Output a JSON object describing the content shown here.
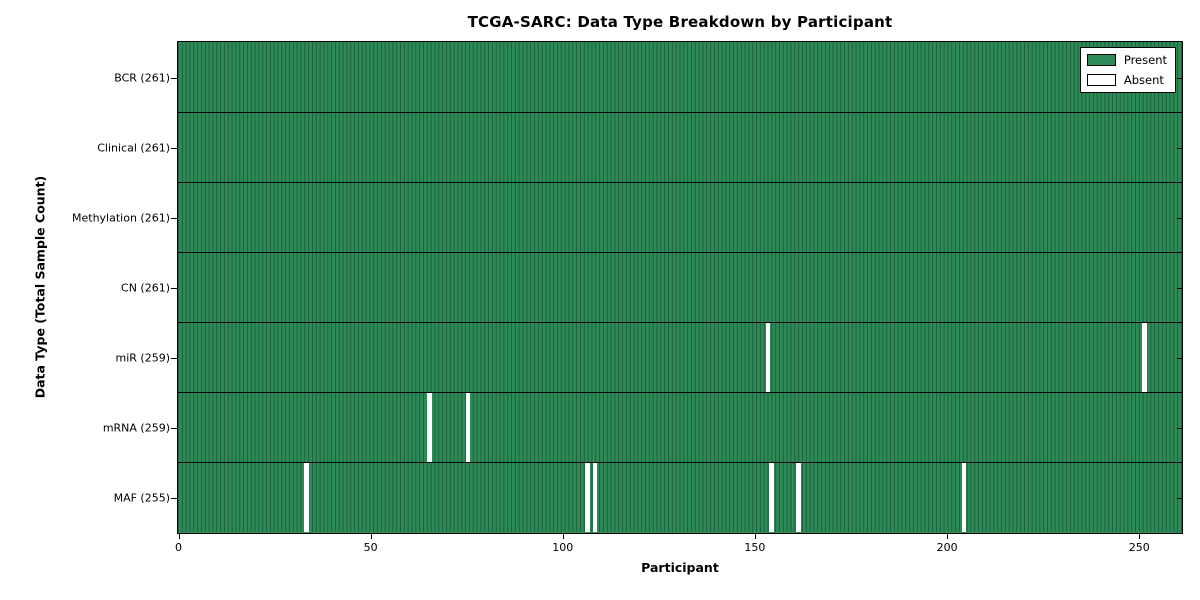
{
  "chart_data": {
    "type": "heatmap",
    "title": "TCGA-SARC: Data Type Breakdown by Participant",
    "xlabel": "Participant",
    "ylabel": "Data Type (Total Sample Count)",
    "xlim": [
      0,
      261
    ],
    "x_ticks": [
      0,
      50,
      100,
      150,
      200,
      250
    ],
    "n_participants": 261,
    "grid": false,
    "legend_position": "upper right",
    "rows": [
      {
        "label": "BCR (261)",
        "data_type": "BCR",
        "present_count": 261,
        "absent_participants": []
      },
      {
        "label": "Clinical (261)",
        "data_type": "Clinical",
        "present_count": 261,
        "absent_participants": []
      },
      {
        "label": "Methylation (261)",
        "data_type": "Methylation",
        "present_count": 261,
        "absent_participants": []
      },
      {
        "label": "CN (261)",
        "data_type": "CN",
        "present_count": 261,
        "absent_participants": []
      },
      {
        "label": "miR (259)",
        "data_type": "miR",
        "present_count": 259,
        "absent_participants": [
          153,
          251
        ]
      },
      {
        "label": "mRNA (259)",
        "data_type": "mRNA",
        "present_count": 259,
        "absent_participants": [
          65,
          75
        ]
      },
      {
        "label": "MAF (255)",
        "data_type": "MAF",
        "present_count": 255,
        "absent_participants": [
          33,
          106,
          108,
          154,
          161,
          204
        ]
      }
    ],
    "legend": [
      {
        "label": "Present",
        "color": "#2e8b57"
      },
      {
        "label": "Absent",
        "color": "#ffffff"
      }
    ],
    "colors": {
      "present": "#2e8b57",
      "absent": "#ffffff",
      "cell_edge": "#1c5e3c",
      "axis": "#000000",
      "background": "#ffffff"
    }
  }
}
